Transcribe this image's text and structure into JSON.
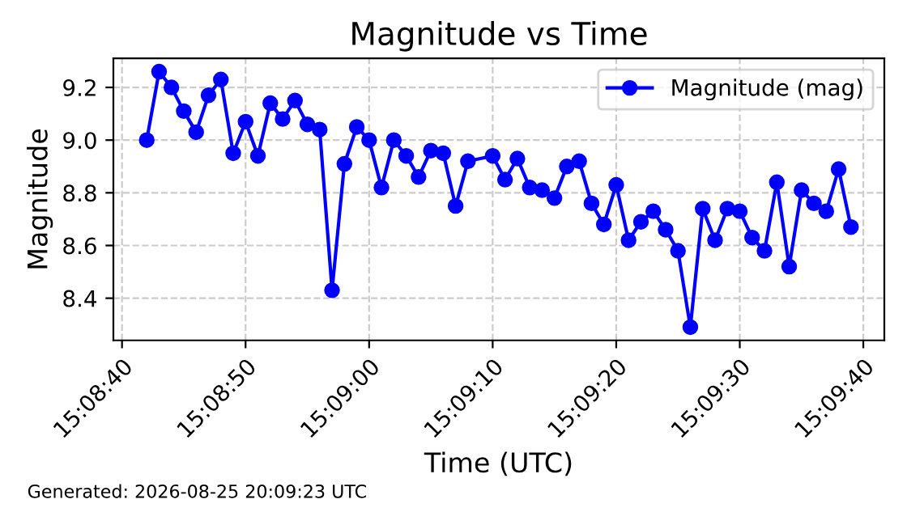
{
  "chart_data": {
    "type": "line",
    "title": "Magnitude vs Time",
    "xlabel": "Time (UTC)",
    "ylabel": "Magnitude",
    "x": [
      "2026-08-25T15:08:42",
      "2026-08-25T15:08:43",
      "2026-08-25T15:08:44",
      "2026-08-25T15:08:45",
      "2026-08-25T15:08:46",
      "2026-08-25T15:08:47",
      "2026-08-25T15:08:48",
      "2026-08-25T15:08:49",
      "2026-08-25T15:08:50",
      "2026-08-25T15:08:51",
      "2026-08-25T15:08:52",
      "2026-08-25T15:08:53",
      "2026-08-25T15:08:54",
      "2026-08-25T15:08:55",
      "2026-08-25T15:08:56",
      "2026-08-25T15:08:57",
      "2026-08-25T15:08:58",
      "2026-08-25T15:08:59",
      "2026-08-25T15:09:00",
      "2026-08-25T15:09:01",
      "2026-08-25T15:09:02",
      "2026-08-25T15:09:03",
      "2026-08-25T15:09:04",
      "2026-08-25T15:09:05",
      "2026-08-25T15:09:06",
      "2026-08-25T15:09:07",
      "2026-08-25T15:09:08",
      "2026-08-25T15:09:10",
      "2026-08-25T15:09:11",
      "2026-08-25T15:09:12",
      "2026-08-25T15:09:13",
      "2026-08-25T15:09:14",
      "2026-08-25T15:09:15",
      "2026-08-25T15:09:16",
      "2026-08-25T15:09:17",
      "2026-08-25T15:09:18",
      "2026-08-25T15:09:19",
      "2026-08-25T15:09:20",
      "2026-08-25T15:09:21",
      "2026-08-25T15:09:22",
      "2026-08-25T15:09:23",
      "2026-08-25T15:09:24",
      "2026-08-25T15:09:25",
      "2026-08-25T15:09:26",
      "2026-08-25T15:09:27",
      "2026-08-25T15:09:28",
      "2026-08-25T15:09:29",
      "2026-08-25T15:09:30",
      "2026-08-25T15:09:31",
      "2026-08-25T15:09:32",
      "2026-08-25T15:09:33",
      "2026-08-25T15:09:34",
      "2026-08-25T15:09:35",
      "2026-08-25T15:09:36",
      "2026-08-25T15:09:37",
      "2026-08-25T15:09:38",
      "2026-08-25T15:09:39"
    ],
    "series": [
      {
        "name": "Magnitude (mag)",
        "color": "#0000ff",
        "values": [
          9.0,
          9.26,
          9.2,
          9.11,
          9.03,
          9.17,
          9.23,
          8.95,
          9.07,
          8.94,
          9.14,
          9.08,
          9.15,
          9.06,
          9.04,
          8.43,
          8.91,
          9.05,
          9.0,
          8.82,
          9.0,
          8.94,
          8.86,
          8.96,
          8.95,
          8.75,
          8.92,
          8.94,
          8.85,
          8.93,
          8.82,
          8.81,
          8.78,
          8.9,
          8.92,
          8.76,
          8.68,
          8.83,
          8.62,
          8.69,
          8.73,
          8.66,
          8.58,
          8.29,
          8.74,
          8.62,
          8.74,
          8.73,
          8.63,
          8.58,
          8.84,
          8.52,
          8.81,
          8.76,
          8.73,
          8.89,
          8.67
        ]
      }
    ],
    "xlim": [
      "2026-08-25T15:08:39.3",
      "2026-08-25T15:09:41.7"
    ],
    "xticks": [
      {
        "value": "2026-08-25T15:08:40",
        "label": "15:08:40"
      },
      {
        "value": "2026-08-25T15:08:50",
        "label": "15:08:50"
      },
      {
        "value": "2026-08-25T15:09:00",
        "label": "15:09:00"
      },
      {
        "value": "2026-08-25T15:09:10",
        "label": "15:09:10"
      },
      {
        "value": "2026-08-25T15:09:20",
        "label": "15:09:20"
      },
      {
        "value": "2026-08-25T15:09:30",
        "label": "15:09:30"
      },
      {
        "value": "2026-08-25T15:09:40",
        "label": "15:09:40"
      }
    ],
    "ylim": [
      8.24,
      9.31
    ],
    "yticks": [
      8.4,
      8.6,
      8.8,
      {
        "value": 9.0,
        "label": "9.0"
      },
      9.2
    ],
    "grid": true,
    "legend": "top right",
    "marker": "circle",
    "line_style": "solid",
    "annotations": [
      "Generated: 2026-08-25 20:09:23 UTC"
    ]
  }
}
